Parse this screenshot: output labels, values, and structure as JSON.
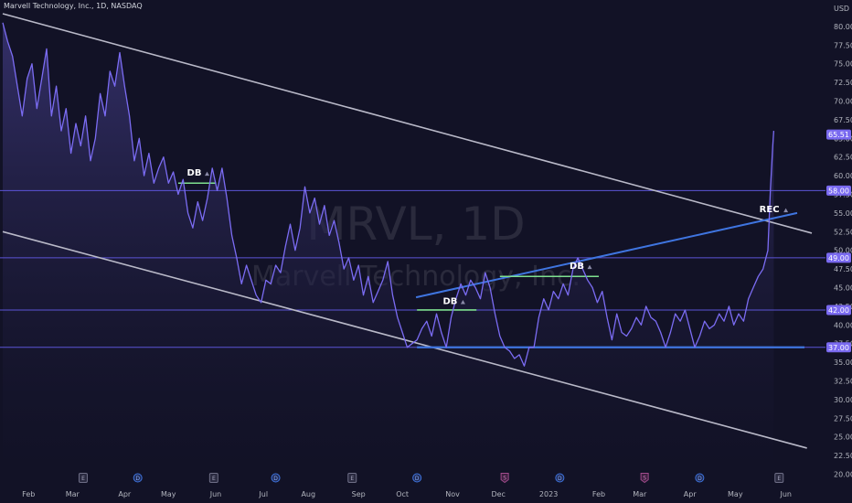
{
  "header": {
    "title": "Marvell Technology, Inc., 1D, NASDAQ",
    "currency": "USD"
  },
  "watermark": {
    "symbol": "MRVL, 1D",
    "name": "Marvell Technology, Inc."
  },
  "chart_data": {
    "type": "area",
    "ylim": [
      20,
      82.5
    ],
    "xlim": [
      0,
      16.6
    ],
    "y_ticks": [
      20.0,
      22.5,
      25.0,
      27.5,
      30.0,
      32.5,
      35.0,
      37.5,
      40.0,
      42.5,
      45.0,
      47.5,
      50.0,
      52.5,
      55.0,
      57.5,
      60.0,
      62.5,
      65.0,
      67.5,
      70.0,
      72.5,
      75.0,
      77.5,
      80.0
    ],
    "x_ticks": [
      {
        "label": "Feb",
        "x": 0.53
      },
      {
        "label": "Mar",
        "x": 1.43
      },
      {
        "label": "Apr",
        "x": 2.5
      },
      {
        "label": "May",
        "x": 3.4
      },
      {
        "label": "Jun",
        "x": 4.37
      },
      {
        "label": "Jul",
        "x": 5.35
      },
      {
        "label": "Aug",
        "x": 6.27
      },
      {
        "label": "Sep",
        "x": 7.3
      },
      {
        "label": "Oct",
        "x": 8.2
      },
      {
        "label": "Nov",
        "x": 9.23
      },
      {
        "label": "Dec",
        "x": 10.17
      },
      {
        "label": "2023",
        "x": 11.2
      },
      {
        "label": "Feb",
        "x": 12.23
      },
      {
        "label": "Mar",
        "x": 13.07
      },
      {
        "label": "Apr",
        "x": 14.1
      },
      {
        "label": "May",
        "x": 15.03
      },
      {
        "label": "Jun",
        "x": 16.07
      }
    ],
    "price_series": [
      [
        0.0,
        80.5
      ],
      [
        0.1,
        78.0
      ],
      [
        0.2,
        76.0
      ],
      [
        0.3,
        72.0
      ],
      [
        0.4,
        68.0
      ],
      [
        0.5,
        73.0
      ],
      [
        0.6,
        75.0
      ],
      [
        0.7,
        69.0
      ],
      [
        0.8,
        73.0
      ],
      [
        0.9,
        77.0
      ],
      [
        1.0,
        68.0
      ],
      [
        1.1,
        72.0
      ],
      [
        1.2,
        66.0
      ],
      [
        1.3,
        69.0
      ],
      [
        1.4,
        63.0
      ],
      [
        1.5,
        67.0
      ],
      [
        1.6,
        64.0
      ],
      [
        1.7,
        68.0
      ],
      [
        1.8,
        62.0
      ],
      [
        1.9,
        65.0
      ],
      [
        2.0,
        71.0
      ],
      [
        2.1,
        68.0
      ],
      [
        2.2,
        74.0
      ],
      [
        2.3,
        72.0
      ],
      [
        2.4,
        76.5
      ],
      [
        2.5,
        72.0
      ],
      [
        2.6,
        68.0
      ],
      [
        2.7,
        62.0
      ],
      [
        2.8,
        65.0
      ],
      [
        2.9,
        60.0
      ],
      [
        3.0,
        63.0
      ],
      [
        3.1,
        59.0
      ],
      [
        3.2,
        61.0
      ],
      [
        3.3,
        62.5
      ],
      [
        3.4,
        59.0
      ],
      [
        3.5,
        60.5
      ],
      [
        3.6,
        57.5
      ],
      [
        3.7,
        59.5
      ],
      [
        3.8,
        55.0
      ],
      [
        3.9,
        53.0
      ],
      [
        4.0,
        56.5
      ],
      [
        4.1,
        54.0
      ],
      [
        4.2,
        57.0
      ],
      [
        4.3,
        61.0
      ],
      [
        4.4,
        58.0
      ],
      [
        4.5,
        61.0
      ],
      [
        4.6,
        57.0
      ],
      [
        4.7,
        52.0
      ],
      [
        4.8,
        49.0
      ],
      [
        4.9,
        45.5
      ],
      [
        5.0,
        48.0
      ],
      [
        5.1,
        46.0
      ],
      [
        5.2,
        44.0
      ],
      [
        5.3,
        43.0
      ],
      [
        5.4,
        46.0
      ],
      [
        5.5,
        45.5
      ],
      [
        5.6,
        48.0
      ],
      [
        5.7,
        47.0
      ],
      [
        5.8,
        50.5
      ],
      [
        5.9,
        53.5
      ],
      [
        6.0,
        50.0
      ],
      [
        6.1,
        53.0
      ],
      [
        6.2,
        58.5
      ],
      [
        6.3,
        55.0
      ],
      [
        6.4,
        57.0
      ],
      [
        6.5,
        53.5
      ],
      [
        6.6,
        56.0
      ],
      [
        6.7,
        52.0
      ],
      [
        6.8,
        54.0
      ],
      [
        6.9,
        51.0
      ],
      [
        7.0,
        47.5
      ],
      [
        7.1,
        49.0
      ],
      [
        7.2,
        46.0
      ],
      [
        7.3,
        48.0
      ],
      [
        7.4,
        44.0
      ],
      [
        7.5,
        46.5
      ],
      [
        7.6,
        43.0
      ],
      [
        7.7,
        44.5
      ],
      [
        7.8,
        46.0
      ],
      [
        7.9,
        48.5
      ],
      [
        8.0,
        44.0
      ],
      [
        8.1,
        41.0
      ],
      [
        8.2,
        39.0
      ],
      [
        8.3,
        37.0
      ],
      [
        8.4,
        37.5
      ],
      [
        8.5,
        38.0
      ],
      [
        8.6,
        39.5
      ],
      [
        8.7,
        40.5
      ],
      [
        8.8,
        38.5
      ],
      [
        8.9,
        41.5
      ],
      [
        9.0,
        39.0
      ],
      [
        9.1,
        37.0
      ],
      [
        9.2,
        41.0
      ],
      [
        9.3,
        43.5
      ],
      [
        9.4,
        45.5
      ],
      [
        9.5,
        44.0
      ],
      [
        9.6,
        46.0
      ],
      [
        9.7,
        45.0
      ],
      [
        9.8,
        43.5
      ],
      [
        9.9,
        47.0
      ],
      [
        10.0,
        45.0
      ],
      [
        10.1,
        41.5
      ],
      [
        10.2,
        38.5
      ],
      [
        10.3,
        37.0
      ],
      [
        10.4,
        36.5
      ],
      [
        10.5,
        35.5
      ],
      [
        10.6,
        36.0
      ],
      [
        10.7,
        34.5
      ],
      [
        10.8,
        37.0
      ],
      [
        10.9,
        37.0
      ],
      [
        11.0,
        41.0
      ],
      [
        11.1,
        43.5
      ],
      [
        11.2,
        42.0
      ],
      [
        11.3,
        44.5
      ],
      [
        11.4,
        43.5
      ],
      [
        11.5,
        45.5
      ],
      [
        11.6,
        44.0
      ],
      [
        11.7,
        47.5
      ],
      [
        11.8,
        49.0
      ],
      [
        11.9,
        47.5
      ],
      [
        12.0,
        46.0
      ],
      [
        12.1,
        45.0
      ],
      [
        12.2,
        43.0
      ],
      [
        12.3,
        44.5
      ],
      [
        12.4,
        41.0
      ],
      [
        12.5,
        38.0
      ],
      [
        12.6,
        41.5
      ],
      [
        12.7,
        39.0
      ],
      [
        12.8,
        38.5
      ],
      [
        12.9,
        39.5
      ],
      [
        13.0,
        41.0
      ],
      [
        13.1,
        40.0
      ],
      [
        13.2,
        42.5
      ],
      [
        13.3,
        41.0
      ],
      [
        13.4,
        40.5
      ],
      [
        13.5,
        39.0
      ],
      [
        13.6,
        37.0
      ],
      [
        13.7,
        39.0
      ],
      [
        13.8,
        41.5
      ],
      [
        13.9,
        40.5
      ],
      [
        14.0,
        42.0
      ],
      [
        14.1,
        39.5
      ],
      [
        14.2,
        37.0
      ],
      [
        14.3,
        38.5
      ],
      [
        14.4,
        40.5
      ],
      [
        14.5,
        39.5
      ],
      [
        14.6,
        40.0
      ],
      [
        14.7,
        41.5
      ],
      [
        14.8,
        40.5
      ],
      [
        14.9,
        42.5
      ],
      [
        15.0,
        40.0
      ],
      [
        15.1,
        41.5
      ],
      [
        15.2,
        40.5
      ],
      [
        15.3,
        43.5
      ],
      [
        15.4,
        45.0
      ],
      [
        15.5,
        46.5
      ],
      [
        15.6,
        47.5
      ],
      [
        15.7,
        50.0
      ],
      [
        15.75,
        58.0
      ],
      [
        15.8,
        64.0
      ],
      [
        15.82,
        66.0
      ]
    ],
    "overlays": {
      "upper_channel": {
        "from": [
          0.0,
          81.7
        ],
        "to": [
          16.6,
          52.3
        ]
      },
      "lower_channel": {
        "from": [
          0.0,
          52.5
        ],
        "to": [
          16.5,
          23.5
        ]
      },
      "rising_trendline": {
        "from": [
          8.48,
          43.7
        ],
        "to": [
          16.3,
          55.0
        ]
      },
      "support_line": {
        "from": [
          8.5,
          37.0
        ],
        "to": [
          16.45,
          37.0
        ]
      },
      "h_levels": [
        58.0,
        49.0,
        42.0,
        37.0
      ],
      "db_necklines": [
        {
          "from": [
            3.6,
            59.0
          ],
          "to": [
            4.38,
            59.0
          ]
        },
        {
          "from": [
            8.5,
            42.0
          ],
          "to": [
            9.72,
            42.0
          ]
        },
        {
          "from": [
            10.2,
            46.5
          ],
          "to": [
            12.23,
            46.5
          ]
        }
      ]
    },
    "price_labels": [
      {
        "text": "65.51",
        "value": 65.51
      },
      {
        "text": "58.00",
        "value": 58.0
      },
      {
        "text": "49.00",
        "value": 49.0
      },
      {
        "text": "42.00",
        "value": 42.0
      },
      {
        "text": "37.00",
        "value": 37.0
      }
    ],
    "annotations": [
      {
        "text": "DB",
        "x": 3.93,
        "y": 60.0
      },
      {
        "text": "DB",
        "x": 9.18,
        "y": 42.8
      },
      {
        "text": "DB",
        "x": 11.78,
        "y": 47.5
      },
      {
        "text": "REC",
        "x": 15.73,
        "y": 55.1
      }
    ],
    "event_markers": [
      {
        "glyph": "E",
        "x": 1.65
      },
      {
        "glyph": "D",
        "x": 2.77
      },
      {
        "glyph": "E",
        "x": 4.33
      },
      {
        "glyph": "D",
        "x": 5.6
      },
      {
        "glyph": "E",
        "x": 7.17
      },
      {
        "glyph": "D",
        "x": 8.5
      },
      {
        "glyph": "S",
        "x": 10.3
      },
      {
        "glyph": "D",
        "x": 11.43
      },
      {
        "glyph": "S",
        "x": 13.17
      },
      {
        "glyph": "D",
        "x": 14.3
      },
      {
        "glyph": "E",
        "x": 15.93
      }
    ],
    "colors": {
      "background": "#121226",
      "price_line": "#7b6cf3",
      "area_top": "#3a3575",
      "grid_level": "#5b54d6",
      "channel": "#b9b9c8",
      "trend_blue": "#3f75e0",
      "neckline_green": "#7ee08f",
      "label_bg": "#7a6af0",
      "label_text": "#ffffff",
      "axis_text": "#b2b5be"
    }
  }
}
